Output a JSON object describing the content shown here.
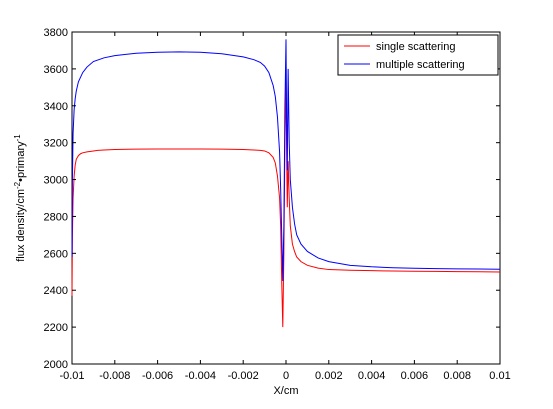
{
  "chart_data": {
    "type": "line",
    "xlabel": "X/cm",
    "ylabel_parts": {
      "base": "flux density/cm",
      "exp1": "-2",
      "mid": "•primary",
      "exp2": "-1"
    },
    "xlim": [
      -0.01,
      0.01
    ],
    "ylim": [
      2000,
      3800
    ],
    "x_ticks": [
      -0.01,
      -0.008,
      -0.006,
      -0.004,
      -0.002,
      0,
      0.002,
      0.004,
      0.006,
      0.008,
      0.01
    ],
    "x_tick_labels": [
      "-0.01",
      "-0.008",
      "-0.006",
      "-0.004",
      "-0.002",
      "0",
      "0.002",
      "0.004",
      "0.006",
      "0.008",
      "0.01"
    ],
    "y_ticks": [
      2000,
      2200,
      2400,
      2600,
      2800,
      3000,
      3200,
      3400,
      3600,
      3800
    ],
    "y_tick_labels": [
      "2000",
      "2200",
      "2400",
      "2600",
      "2800",
      "3000",
      "3200",
      "3400",
      "3600",
      "3800"
    ],
    "grid": false,
    "legend_position": "top-right",
    "series": [
      {
        "name": "single scattering",
        "color": "#ff0000",
        "x": [
          -0.01,
          -0.00998,
          -0.00995,
          -0.0099,
          -0.00985,
          -0.0098,
          -0.0097,
          -0.0096,
          -0.0095,
          -0.0093,
          -0.009,
          -0.0088,
          -0.0085,
          -0.008,
          -0.007,
          -0.006,
          -0.005,
          -0.004,
          -0.003,
          -0.002,
          -0.0015,
          -0.0012,
          -0.001,
          -0.0008,
          -0.0006,
          -0.0005,
          -0.0004,
          -0.0003,
          -0.00025,
          -0.0002,
          -0.00015,
          -0.0001,
          -5e-05,
          0,
          3e-05,
          6e-05,
          0.0001,
          0.00015,
          0.0002,
          0.0003,
          0.0004,
          0.0005,
          0.0007,
          0.001,
          0.0015,
          0.002,
          0.003,
          0.004,
          0.005,
          0.006,
          0.007,
          0.008,
          0.009,
          0.01
        ],
        "values": [
          2370,
          2700,
          2900,
          3020,
          3080,
          3110,
          3130,
          3140,
          3145,
          3150,
          3155,
          3158,
          3160,
          3163,
          3165,
          3166,
          3166,
          3166,
          3165,
          3163,
          3160,
          3158,
          3155,
          3145,
          3120,
          3090,
          3020,
          2900,
          2750,
          2450,
          2200,
          2600,
          3200,
          3550,
          3150,
          2850,
          3100,
          2900,
          2750,
          2650,
          2610,
          2580,
          2555,
          2535,
          2520,
          2512,
          2508,
          2506,
          2504,
          2503,
          2502,
          2501,
          2500,
          2499
        ]
      },
      {
        "name": "multiple scattering",
        "color": "#0000ff",
        "x": [
          -0.01,
          -0.00998,
          -0.00995,
          -0.0099,
          -0.00985,
          -0.0098,
          -0.0097,
          -0.0095,
          -0.0093,
          -0.009,
          -0.0085,
          -0.008,
          -0.007,
          -0.006,
          -0.005,
          -0.004,
          -0.003,
          -0.002,
          -0.0015,
          -0.0012,
          -0.001,
          -0.0008,
          -0.0006,
          -0.0005,
          -0.0004,
          -0.0003,
          -0.00025,
          -0.0002,
          -0.00015,
          -0.0001,
          -5e-05,
          0,
          3e-05,
          6e-05,
          0.0001,
          0.00015,
          0.0002,
          0.0003,
          0.0004,
          0.0005,
          0.0007,
          0.001,
          0.0015,
          0.002,
          0.003,
          0.004,
          0.005,
          0.006,
          0.007,
          0.008,
          0.009,
          0.01
        ],
        "values": [
          2580,
          3000,
          3250,
          3380,
          3440,
          3480,
          3530,
          3580,
          3610,
          3640,
          3660,
          3672,
          3685,
          3690,
          3692,
          3690,
          3682,
          3665,
          3650,
          3635,
          3615,
          3580,
          3510,
          3450,
          3340,
          3150,
          2950,
          2700,
          2450,
          2750,
          3400,
          3760,
          3300,
          3050,
          3600,
          3200,
          3000,
          2850,
          2760,
          2700,
          2650,
          2610,
          2575,
          2555,
          2535,
          2527,
          2522,
          2519,
          2517,
          2516,
          2515,
          2514
        ]
      }
    ]
  }
}
